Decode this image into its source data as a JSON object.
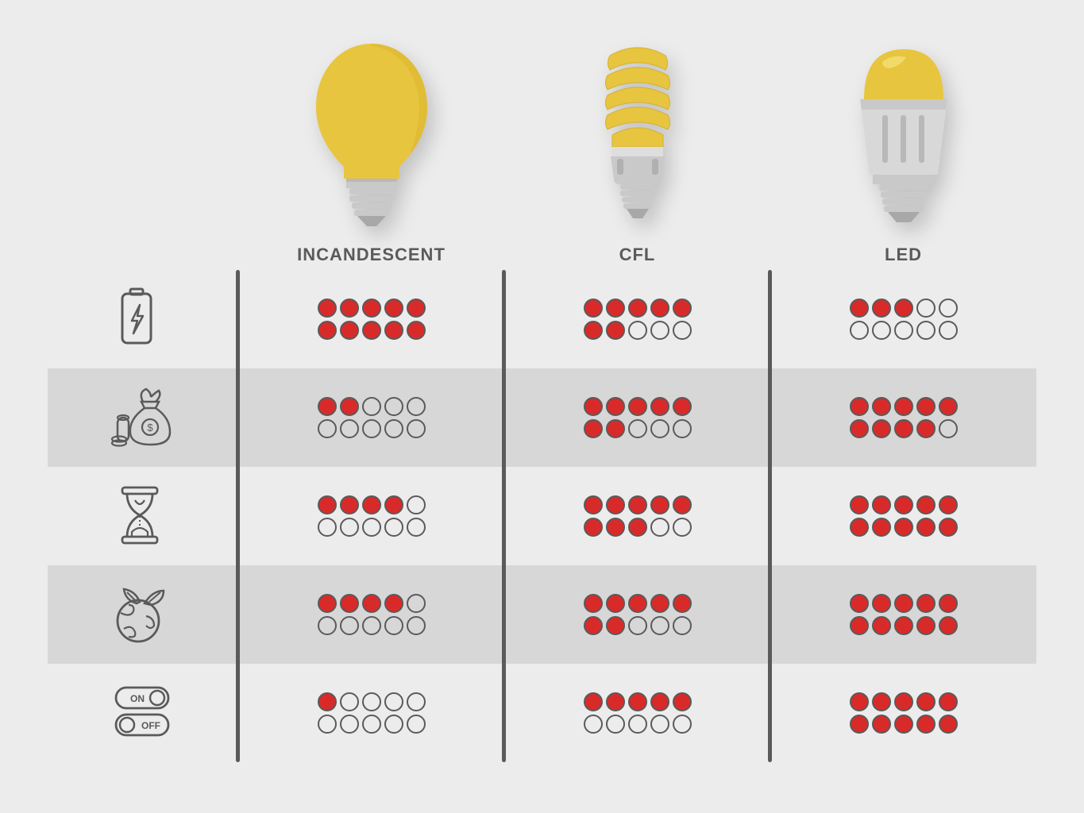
{
  "background_color": "#ececec",
  "shaded_row_color": "#d7d7d7",
  "divider_color": "#5a5a5a",
  "dot_fill_color": "#d92a2a",
  "dot_border_color": "#5a5a5a",
  "bulb_yellow": "#e8c53f",
  "bulb_yellow_light": "#f0d356",
  "bulb_grey": "#c9c9c9",
  "bulb_grey_dark": "#a8a8a8",
  "icon_stroke": "#5a5a5a",
  "label_color": "#5a5a5a",
  "label_fontsize": 22,
  "columns": [
    {
      "id": "incandescent",
      "label": "INCANDESCENT"
    },
    {
      "id": "cfl",
      "label": "CFL"
    },
    {
      "id": "led",
      "label": "LED"
    }
  ],
  "metrics": [
    {
      "id": "energy",
      "icon": "battery-bolt-icon",
      "shaded": false
    },
    {
      "id": "cost",
      "icon": "money-bag-icon",
      "shaded": true
    },
    {
      "id": "lifespan",
      "icon": "hourglass-icon",
      "shaded": false
    },
    {
      "id": "eco",
      "icon": "eco-globe-icon",
      "shaded": true
    },
    {
      "id": "switching",
      "icon": "on-off-toggle-icon",
      "shaded": false
    }
  ],
  "max_dots": 10,
  "values": {
    "energy": {
      "incandescent": 10,
      "cfl": 7,
      "led": 3
    },
    "cost": {
      "incandescent": 2,
      "cfl": 7,
      "led": 9
    },
    "lifespan": {
      "incandescent": 4,
      "cfl": 8,
      "led": 10
    },
    "eco": {
      "incandescent": 4,
      "cfl": 7,
      "led": 10
    },
    "switching": {
      "incandescent": 1,
      "cfl": 5,
      "led": 10
    }
  },
  "toggle_on_label": "ON",
  "toggle_off_label": "OFF"
}
